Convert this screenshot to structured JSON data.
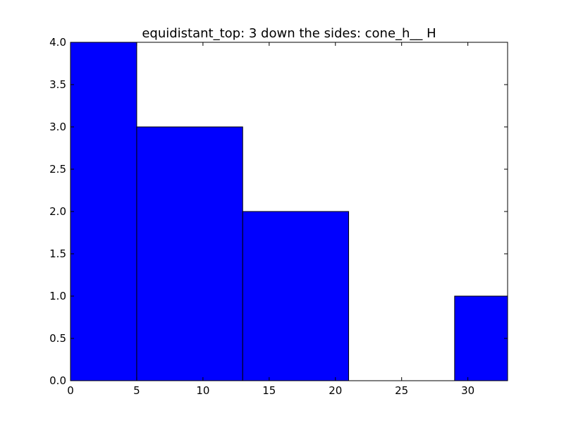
{
  "chart_data": {
    "type": "bar",
    "title": "equidistant_top: 3 down the sides: cone_h__ H",
    "xlabel": "",
    "ylabel": "",
    "bins": [
      {
        "x0": 0,
        "x1": 5,
        "value": 4
      },
      {
        "x0": 5,
        "x1": 13,
        "value": 3
      },
      {
        "x0": 13,
        "x1": 21,
        "value": 2
      },
      {
        "x0": 21,
        "x1": 29,
        "value": 0
      },
      {
        "x0": 29,
        "x1": 33,
        "value": 1
      }
    ],
    "xlim": [
      0,
      33
    ],
    "ylim": [
      0,
      4
    ],
    "xticks": [
      0,
      5,
      10,
      15,
      20,
      25,
      30
    ],
    "xtick_labels": [
      "0",
      "5",
      "10",
      "15",
      "20",
      "25",
      "30"
    ],
    "yticks": [
      0,
      0.5,
      1,
      1.5,
      2,
      2.5,
      3,
      3.5,
      4
    ],
    "ytick_labels": [
      "0.0",
      "0.5",
      "1.0",
      "1.5",
      "2.0",
      "2.5",
      "3.0",
      "3.5",
      "4.0"
    ],
    "grid": false,
    "bar_color": "#0000ff",
    "edge_color": "#000000"
  }
}
